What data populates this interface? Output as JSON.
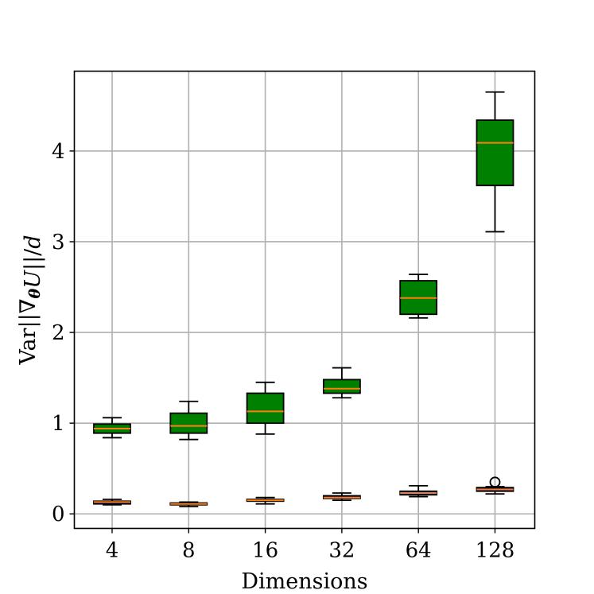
{
  "chart_data": {
    "type": "box",
    "xlabel": "Dimensions",
    "ylabel": "Var||∇θU||/d",
    "categories": [
      "4",
      "8",
      "16",
      "32",
      "64",
      "128"
    ],
    "ylim": [
      -0.16,
      4.88
    ],
    "yticks": [
      0,
      1,
      2,
      3,
      4
    ],
    "grid": true,
    "colors": {
      "upper_box_fill": "#008000",
      "lower_box_fill": "#0000c0",
      "median": "#ff7f0e",
      "outline": "#000000",
      "grid": "#b0b0b0"
    },
    "series": [
      {
        "boxes": [
          {
            "whislo": 0.84,
            "q1": 0.89,
            "med": 0.94,
            "q3": 0.99,
            "whishi": 1.06,
            "fliers": []
          },
          {
            "whislo": 0.82,
            "q1": 0.89,
            "med": 0.97,
            "q3": 1.11,
            "whishi": 1.24,
            "fliers": []
          },
          {
            "whislo": 0.88,
            "q1": 1.0,
            "med": 1.13,
            "q3": 1.33,
            "whishi": 1.45,
            "fliers": []
          },
          {
            "whislo": 1.28,
            "q1": 1.33,
            "med": 1.38,
            "q3": 1.48,
            "whishi": 1.61,
            "fliers": []
          },
          {
            "whislo": 2.16,
            "q1": 2.2,
            "med": 2.38,
            "q3": 2.57,
            "whishi": 2.64,
            "fliers": []
          },
          {
            "whislo": 3.11,
            "q1": 3.62,
            "med": 4.09,
            "q3": 4.34,
            "whishi": 4.65,
            "fliers": []
          }
        ]
      },
      {
        "boxes": [
          {
            "whislo": 0.1,
            "q1": 0.11,
            "med": 0.13,
            "q3": 0.14,
            "whishi": 0.16,
            "fliers": []
          },
          {
            "whislo": 0.08,
            "q1": 0.1,
            "med": 0.11,
            "q3": 0.12,
            "whishi": 0.13,
            "fliers": []
          },
          {
            "whislo": 0.11,
            "q1": 0.14,
            "med": 0.15,
            "q3": 0.16,
            "whishi": 0.18,
            "fliers": []
          },
          {
            "whislo": 0.15,
            "q1": 0.17,
            "med": 0.18,
            "q3": 0.2,
            "whishi": 0.23,
            "fliers": []
          },
          {
            "whislo": 0.19,
            "q1": 0.21,
            "med": 0.23,
            "q3": 0.25,
            "whishi": 0.31,
            "fliers": []
          },
          {
            "whislo": 0.22,
            "q1": 0.25,
            "med": 0.27,
            "q3": 0.29,
            "whishi": 0.3,
            "fliers": [
              0.35
            ]
          }
        ]
      }
    ]
  }
}
